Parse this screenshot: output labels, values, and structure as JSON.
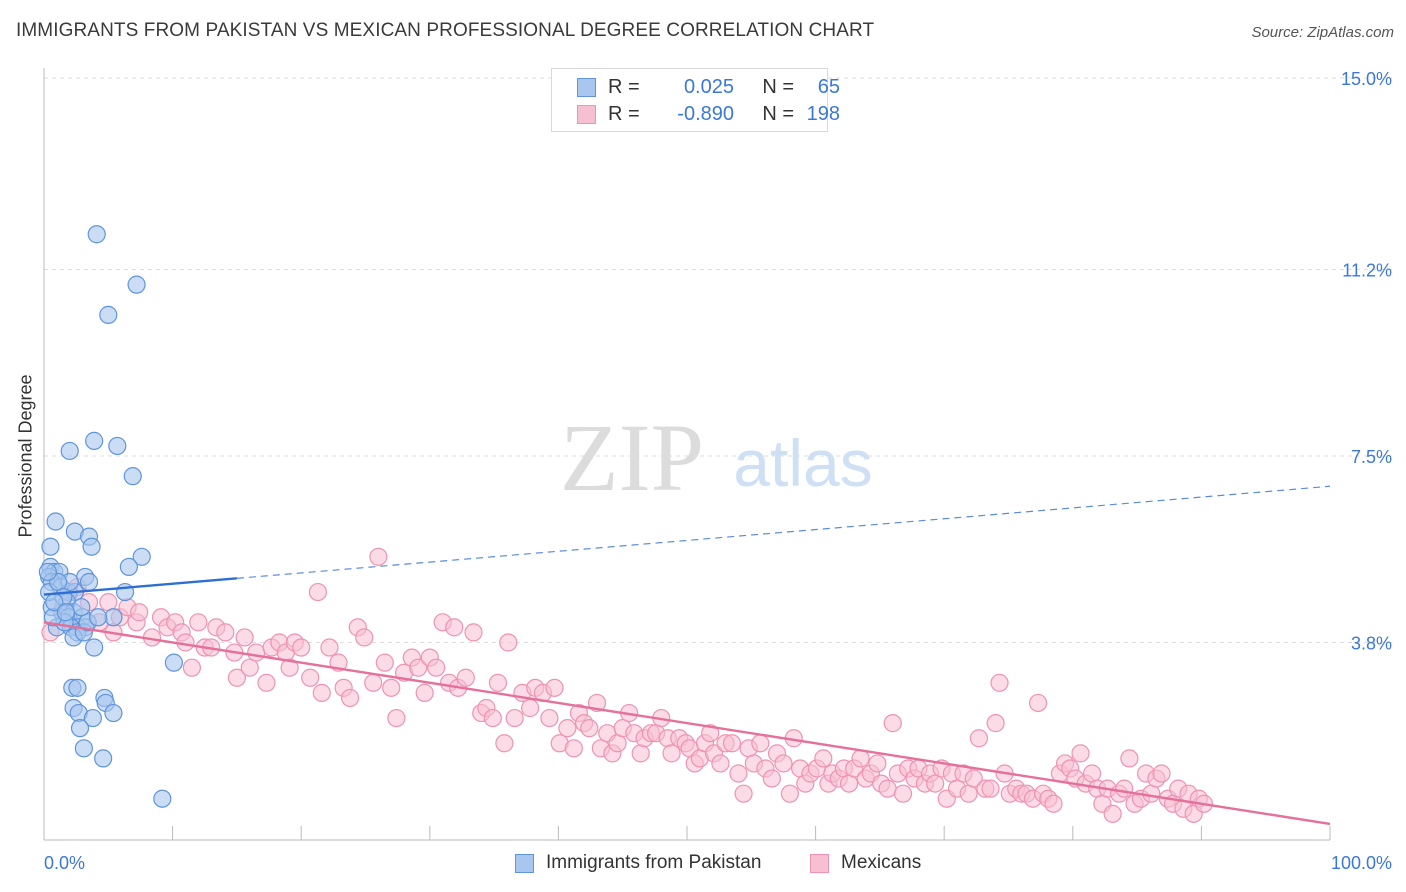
{
  "header": {
    "title": "IMMIGRANTS FROM PAKISTAN VS MEXICAN PROFESSIONAL DEGREE CORRELATION CHART",
    "source": "Source: ZipAtlas.com"
  },
  "watermark": {
    "zip": "ZIP",
    "atlas": "atlas"
  },
  "colors": {
    "blue_fill": "#a9c6ef",
    "blue_stroke": "#5f95dc",
    "blue_line": "#2f6fd1",
    "pink_fill": "#f7bfd2",
    "pink_stroke": "#ef92b3",
    "pink_line": "#e5709a",
    "tick_text": "#3b78d8",
    "grid": "#dddddd"
  },
  "legend": {
    "rows": [
      {
        "r_label": "R =",
        "r_value": "0.025",
        "n_label": "N =",
        "n_value": "65"
      },
      {
        "r_label": "R =",
        "r_value": "-0.890",
        "n_label": "N =",
        "n_value": "198"
      }
    ],
    "bottom": [
      "Immigrants from Pakistan",
      "Mexicans"
    ]
  },
  "chart_data": {
    "type": "scatter",
    "title": "IMMIGRANTS FROM PAKISTAN VS MEXICAN PROFESSIONAL DEGREE CORRELATION CHART",
    "xlabel": "",
    "ylabel": "Professional Degree",
    "xlim": [
      0,
      100
    ],
    "ylim": [
      0,
      15.0
    ],
    "x_tick_labels": [
      "0.0%",
      "100.0%"
    ],
    "y_ticks": [
      3.8,
      7.5,
      11.2,
      15.0
    ],
    "y_tick_labels": [
      "3.8%",
      "7.5%",
      "11.2%",
      "15.0%"
    ],
    "grid": "horizontal dashed",
    "legend_placement": "top-center and bottom",
    "series": [
      {
        "name": "Immigrants from Pakistan",
        "points": [
          [
            4.1,
            11.9
          ],
          [
            7.2,
            10.9
          ],
          [
            5.0,
            10.3
          ],
          [
            3.9,
            7.8
          ],
          [
            5.7,
            7.7
          ],
          [
            2.0,
            7.6
          ],
          [
            6.9,
            7.1
          ],
          [
            0.9,
            6.2
          ],
          [
            2.4,
            6.0
          ],
          [
            3.5,
            5.9
          ],
          [
            0.5,
            5.7
          ],
          [
            3.7,
            5.7
          ],
          [
            7.6,
            5.5
          ],
          [
            6.6,
            5.3
          ],
          [
            0.5,
            5.3
          ],
          [
            0.8,
            5.2
          ],
          [
            1.2,
            5.2
          ],
          [
            3.2,
            5.1
          ],
          [
            0.4,
            5.1
          ],
          [
            0.6,
            5.0
          ],
          [
            3.5,
            5.0
          ],
          [
            1.3,
            4.9
          ],
          [
            1.9,
            4.8
          ],
          [
            2.4,
            4.8
          ],
          [
            6.3,
            4.8
          ],
          [
            1.8,
            4.6
          ],
          [
            1.4,
            4.4
          ],
          [
            0.6,
            4.5
          ],
          [
            2.3,
            4.4
          ],
          [
            1.9,
            4.3
          ],
          [
            3.0,
            4.3
          ],
          [
            5.4,
            4.3
          ],
          [
            1.0,
            4.1
          ],
          [
            2.6,
            4.1
          ],
          [
            2.1,
            4.1
          ],
          [
            3.2,
            4.1
          ],
          [
            2.6,
            4.0
          ],
          [
            2.3,
            3.9
          ],
          [
            3.1,
            4.0
          ],
          [
            3.9,
            3.7
          ],
          [
            10.1,
            3.4
          ],
          [
            2.2,
            2.9
          ],
          [
            2.6,
            2.9
          ],
          [
            4.7,
            2.7
          ],
          [
            2.3,
            2.5
          ],
          [
            4.8,
            2.6
          ],
          [
            2.7,
            2.4
          ],
          [
            5.4,
            2.4
          ],
          [
            3.8,
            2.3
          ],
          [
            2.8,
            2.1
          ],
          [
            3.1,
            1.7
          ],
          [
            4.6,
            1.5
          ],
          [
            9.2,
            0.7
          ],
          [
            0.4,
            4.8
          ],
          [
            1.6,
            4.2
          ],
          [
            2.0,
            5.0
          ],
          [
            3.4,
            4.2
          ],
          [
            0.7,
            4.3
          ],
          [
            1.1,
            5.0
          ],
          [
            0.3,
            5.2
          ],
          [
            2.9,
            4.5
          ],
          [
            1.5,
            4.7
          ],
          [
            4.2,
            4.3
          ],
          [
            0.8,
            4.6
          ],
          [
            1.7,
            4.4
          ]
        ]
      },
      {
        "name": "Mexicans",
        "points": [
          [
            0.5,
            4.0
          ],
          [
            1.5,
            4.5
          ],
          [
            2.0,
            4.8
          ],
          [
            2.6,
            4.9
          ],
          [
            3.5,
            4.6
          ],
          [
            4.3,
            4.2
          ],
          [
            5.0,
            4.6
          ],
          [
            5.4,
            4.0
          ],
          [
            5.9,
            4.3
          ],
          [
            6.5,
            4.5
          ],
          [
            7.2,
            4.2
          ],
          [
            7.4,
            4.4
          ],
          [
            8.4,
            3.9
          ],
          [
            9.1,
            4.3
          ],
          [
            9.6,
            4.1
          ],
          [
            10.2,
            4.2
          ],
          [
            10.7,
            4.0
          ],
          [
            11.0,
            3.8
          ],
          [
            11.5,
            3.3
          ],
          [
            12.0,
            4.2
          ],
          [
            12.5,
            3.7
          ],
          [
            13.0,
            3.7
          ],
          [
            13.4,
            4.1
          ],
          [
            14.1,
            4.0
          ],
          [
            14.8,
            3.6
          ],
          [
            15.0,
            3.1
          ],
          [
            15.6,
            3.9
          ],
          [
            16.0,
            3.3
          ],
          [
            16.5,
            3.6
          ],
          [
            17.3,
            3.0
          ],
          [
            17.7,
            3.7
          ],
          [
            18.3,
            3.8
          ],
          [
            18.8,
            3.6
          ],
          [
            19.1,
            3.3
          ],
          [
            19.5,
            3.8
          ],
          [
            20.0,
            3.7
          ],
          [
            20.7,
            3.1
          ],
          [
            21.3,
            4.8
          ],
          [
            21.6,
            2.8
          ],
          [
            22.2,
            3.7
          ],
          [
            22.9,
            3.4
          ],
          [
            23.3,
            2.9
          ],
          [
            23.8,
            2.7
          ],
          [
            24.4,
            4.1
          ],
          [
            24.9,
            3.9
          ],
          [
            25.6,
            3.0
          ],
          [
            26.0,
            5.5
          ],
          [
            26.5,
            3.4
          ],
          [
            27.0,
            2.9
          ],
          [
            27.4,
            2.3
          ],
          [
            28.0,
            3.2
          ],
          [
            28.6,
            3.5
          ],
          [
            29.1,
            3.3
          ],
          [
            29.6,
            2.8
          ],
          [
            30.0,
            3.5
          ],
          [
            30.5,
            3.3
          ],
          [
            31.0,
            4.2
          ],
          [
            31.5,
            3.0
          ],
          [
            31.9,
            4.1
          ],
          [
            32.2,
            2.9
          ],
          [
            32.8,
            3.1
          ],
          [
            33.4,
            4.0
          ],
          [
            34.0,
            2.4
          ],
          [
            34.4,
            2.5
          ],
          [
            34.9,
            2.3
          ],
          [
            35.3,
            3.0
          ],
          [
            35.8,
            1.8
          ],
          [
            36.1,
            3.8
          ],
          [
            36.6,
            2.3
          ],
          [
            37.2,
            2.8
          ],
          [
            37.8,
            2.5
          ],
          [
            38.2,
            2.9
          ],
          [
            38.8,
            2.8
          ],
          [
            39.3,
            2.3
          ],
          [
            39.7,
            2.9
          ],
          [
            40.1,
            1.8
          ],
          [
            40.7,
            2.1
          ],
          [
            41.2,
            1.7
          ],
          [
            41.6,
            2.4
          ],
          [
            42.0,
            2.2
          ],
          [
            42.4,
            2.1
          ],
          [
            43.0,
            2.6
          ],
          [
            43.3,
            1.7
          ],
          [
            43.8,
            2.0
          ],
          [
            44.2,
            1.6
          ],
          [
            44.6,
            1.8
          ],
          [
            45.0,
            2.1
          ],
          [
            45.5,
            2.4
          ],
          [
            45.9,
            2.0
          ],
          [
            46.4,
            1.6
          ],
          [
            46.7,
            1.9
          ],
          [
            47.2,
            2.0
          ],
          [
            47.6,
            2.0
          ],
          [
            48.0,
            2.3
          ],
          [
            48.5,
            1.9
          ],
          [
            48.8,
            1.6
          ],
          [
            49.4,
            1.9
          ],
          [
            49.9,
            1.8
          ],
          [
            50.2,
            1.7
          ],
          [
            50.6,
            1.4
          ],
          [
            51.0,
            1.5
          ],
          [
            51.4,
            1.8
          ],
          [
            51.8,
            2.0
          ],
          [
            52.1,
            1.6
          ],
          [
            52.6,
            1.4
          ],
          [
            53.0,
            1.8
          ],
          [
            53.5,
            1.8
          ],
          [
            54.0,
            1.2
          ],
          [
            54.4,
            0.8
          ],
          [
            54.8,
            1.7
          ],
          [
            55.2,
            1.4
          ],
          [
            55.7,
            1.8
          ],
          [
            56.1,
            1.3
          ],
          [
            56.6,
            1.1
          ],
          [
            57.0,
            1.6
          ],
          [
            57.5,
            1.4
          ],
          [
            58.0,
            0.8
          ],
          [
            58.3,
            1.9
          ],
          [
            58.8,
            1.3
          ],
          [
            59.2,
            1.0
          ],
          [
            59.6,
            1.2
          ],
          [
            60.1,
            1.3
          ],
          [
            60.6,
            1.5
          ],
          [
            61.0,
            1.0
          ],
          [
            61.3,
            1.2
          ],
          [
            61.8,
            1.1
          ],
          [
            62.2,
            1.3
          ],
          [
            62.6,
            1.0
          ],
          [
            63.0,
            1.3
          ],
          [
            63.5,
            1.5
          ],
          [
            63.9,
            1.1
          ],
          [
            64.3,
            1.2
          ],
          [
            64.8,
            1.4
          ],
          [
            65.1,
            1.0
          ],
          [
            65.6,
            0.9
          ],
          [
            66.0,
            2.2
          ],
          [
            66.4,
            1.2
          ],
          [
            66.8,
            0.8
          ],
          [
            67.2,
            1.3
          ],
          [
            67.7,
            1.1
          ],
          [
            68.0,
            1.3
          ],
          [
            68.5,
            1.0
          ],
          [
            68.9,
            1.2
          ],
          [
            69.3,
            1.0
          ],
          [
            69.8,
            1.3
          ],
          [
            70.2,
            0.7
          ],
          [
            70.6,
            1.2
          ],
          [
            71.0,
            0.9
          ],
          [
            71.5,
            1.2
          ],
          [
            71.9,
            0.8
          ],
          [
            72.3,
            1.1
          ],
          [
            72.7,
            1.9
          ],
          [
            73.2,
            0.9
          ],
          [
            73.6,
            0.9
          ],
          [
            74.0,
            2.2
          ],
          [
            74.3,
            3.0
          ],
          [
            74.7,
            1.2
          ],
          [
            75.1,
            0.8
          ],
          [
            75.6,
            0.9
          ],
          [
            76.0,
            0.8
          ],
          [
            76.4,
            0.8
          ],
          [
            76.9,
            0.7
          ],
          [
            77.3,
            2.6
          ],
          [
            77.7,
            0.8
          ],
          [
            78.1,
            0.7
          ],
          [
            78.5,
            0.6
          ],
          [
            79.0,
            1.2
          ],
          [
            79.4,
            1.4
          ],
          [
            79.8,
            1.3
          ],
          [
            80.2,
            1.1
          ],
          [
            80.6,
            1.6
          ],
          [
            81.0,
            1.0
          ],
          [
            81.5,
            1.2
          ],
          [
            81.9,
            0.9
          ],
          [
            82.3,
            0.6
          ],
          [
            82.7,
            0.9
          ],
          [
            83.1,
            0.4
          ],
          [
            83.6,
            0.8
          ],
          [
            84.0,
            0.9
          ],
          [
            84.4,
            1.5
          ],
          [
            84.8,
            0.6
          ],
          [
            85.3,
            0.7
          ],
          [
            85.7,
            1.2
          ],
          [
            86.1,
            0.8
          ],
          [
            86.5,
            1.1
          ],
          [
            86.9,
            1.2
          ],
          [
            87.4,
            0.7
          ],
          [
            87.8,
            0.6
          ],
          [
            88.2,
            0.9
          ],
          [
            88.6,
            0.5
          ],
          [
            89.0,
            0.8
          ],
          [
            89.4,
            0.4
          ],
          [
            89.8,
            0.7
          ],
          [
            90.2,
            0.6
          ]
        ]
      }
    ],
    "trend_lines": [
      {
        "series": "Immigrants from Pakistan",
        "from": [
          0,
          4.75
        ],
        "to": [
          100,
          6.9
        ],
        "solid_until_x": 15
      },
      {
        "series": "Mexicans",
        "from": [
          0,
          4.2
        ],
        "to": [
          100,
          0.2
        ]
      }
    ]
  }
}
